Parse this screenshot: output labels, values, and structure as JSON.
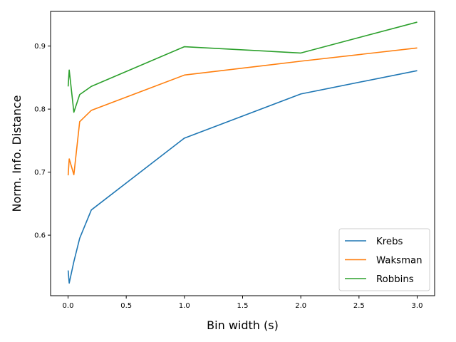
{
  "chart_data": {
    "type": "line",
    "title": "",
    "xlabel": "Bin width (s)",
    "ylabel": "Norm. Info. Distance",
    "xlim": [
      -0.15,
      3.15
    ],
    "ylim": [
      0.504,
      0.955
    ],
    "xticks": [
      0.0,
      0.5,
      1.0,
      1.5,
      2.0,
      2.5,
      3.0
    ],
    "xtick_labels": [
      "0.0",
      "0.5",
      "1.0",
      "1.5",
      "2.0",
      "2.5",
      "3.0"
    ],
    "yticks": [
      0.6,
      0.7,
      0.8,
      0.9
    ],
    "ytick_labels": [
      "0.6",
      "0.7",
      "0.8",
      "0.9"
    ],
    "grid": false,
    "legend_position": "lower-right",
    "x": [
      0.001,
      0.01,
      0.05,
      0.1,
      0.2,
      1.0,
      2.0,
      3.0
    ],
    "series": [
      {
        "name": "Krebs",
        "color": "#1f77b4",
        "values": [
          0.544,
          0.524,
          0.558,
          0.595,
          0.64,
          0.754,
          0.824,
          0.861
        ]
      },
      {
        "name": "Waksman",
        "color": "#ff7f0e",
        "values": [
          0.695,
          0.721,
          0.696,
          0.78,
          0.798,
          0.854,
          0.876,
          0.897
        ]
      },
      {
        "name": "Robbins",
        "color": "#2ca02c",
        "values": [
          0.836,
          0.862,
          0.795,
          0.823,
          0.836,
          0.899,
          0.889,
          0.938
        ]
      }
    ]
  }
}
